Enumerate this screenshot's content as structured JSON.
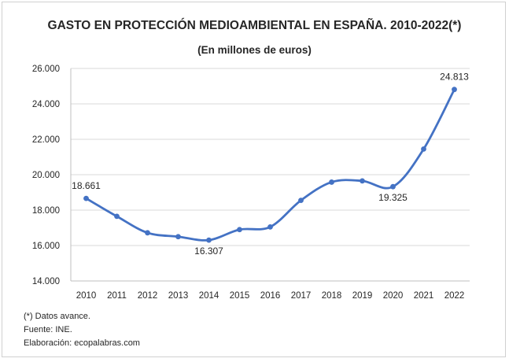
{
  "chart_data": {
    "type": "line",
    "title": "GASTO EN PROTECCIÓN MEDIOAMBIENTAL EN ESPAÑA. 2010-2022(*)",
    "subtitle": "(En millones de euros)",
    "xlabel": "",
    "ylabel": "",
    "categories": [
      "2010",
      "2011",
      "2012",
      "2013",
      "2014",
      "2015",
      "2016",
      "2017",
      "2018",
      "2019",
      "2020",
      "2021",
      "2022"
    ],
    "values": [
      18661,
      17650,
      16720,
      16500,
      16307,
      16900,
      17050,
      18550,
      19580,
      19650,
      19325,
      21450,
      24813
    ],
    "ylim": [
      14000,
      26000
    ],
    "yticks": [
      14000,
      16000,
      18000,
      20000,
      22000,
      24000,
      26000
    ],
    "ytick_labels": [
      "14.000",
      "16.000",
      "18.000",
      "20.000",
      "22.000",
      "24.000",
      "26.000"
    ],
    "data_labels": [
      {
        "index": 0,
        "text": "18.661"
      },
      {
        "index": 4,
        "text": "16.307"
      },
      {
        "index": 10,
        "text": "19.325"
      },
      {
        "index": 12,
        "text": "24.813"
      }
    ],
    "grid": true,
    "legend": "none",
    "line_color": "#4472c4",
    "grid_color": "#d9d9d9"
  },
  "notes": [
    "(*) Datos avance.",
    "Fuente: INE.",
    "Elaboración: ecopalabras.com"
  ]
}
